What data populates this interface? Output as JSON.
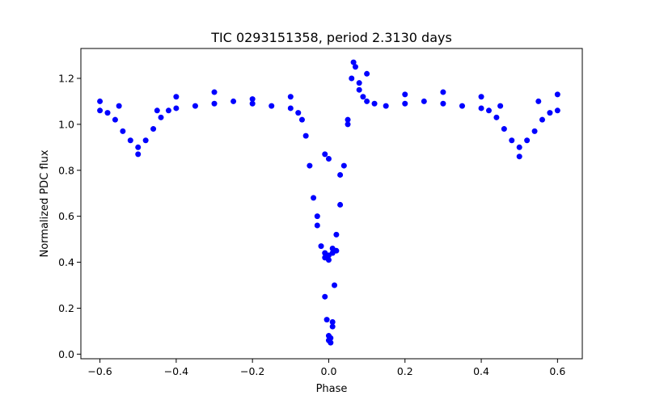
{
  "chart_data": {
    "type": "scatter",
    "title": "TIC 0293151358, period 2.3130 days",
    "xlabel": "Phase",
    "ylabel": "Normalized PDC flux",
    "xlim": [
      -0.65,
      0.665
    ],
    "ylim": [
      -0.02,
      1.33
    ],
    "xticks": [
      -0.6,
      -0.4,
      -0.2,
      0.0,
      0.2,
      0.4,
      0.6
    ],
    "xtick_labels": [
      "−0.6",
      "−0.4",
      "−0.2",
      "0.0",
      "0.2",
      "0.4",
      "0.6"
    ],
    "yticks": [
      0.0,
      0.2,
      0.4,
      0.6,
      0.8,
      1.0,
      1.2
    ],
    "ytick_labels": [
      "0.0",
      "0.2",
      "0.4",
      "0.6",
      "0.8",
      "1.0",
      "1.2"
    ],
    "grid": false,
    "series": [
      {
        "name": "Normalized PDC flux",
        "color": "#0000ff",
        "x": [
          -0.6,
          -0.58,
          -0.56,
          -0.54,
          -0.52,
          -0.5,
          -0.48,
          -0.46,
          -0.44,
          -0.42,
          -0.4,
          -0.35,
          -0.3,
          -0.25,
          -0.2,
          -0.15,
          -0.1,
          -0.08,
          -0.06,
          -0.05,
          -0.04,
          -0.03,
          -0.02,
          -0.01,
          0.0,
          0.01,
          0.02,
          0.03,
          0.04,
          0.05,
          0.06,
          0.065,
          0.07,
          0.08,
          0.09,
          0.1,
          0.12,
          0.15,
          0.2,
          0.25,
          0.3,
          0.35,
          0.4,
          0.42,
          0.44,
          0.46,
          0.48,
          0.5,
          0.52,
          0.54,
          0.56,
          0.58,
          0.6,
          -0.6,
          -0.55,
          -0.5,
          -0.45,
          -0.4,
          -0.3,
          -0.2,
          -0.1,
          -0.07,
          -0.03,
          -0.01,
          0.0,
          0.01,
          0.03,
          0.05,
          0.08,
          0.1,
          0.2,
          0.3,
          0.4,
          0.45,
          0.5,
          0.55,
          0.6,
          -0.01,
          -0.005,
          0.0,
          0.005,
          0.01,
          0.015,
          0.02,
          -0.01,
          0.0,
          0.01,
          0.0,
          0.005
        ],
        "y": [
          1.06,
          1.05,
          1.02,
          0.97,
          0.93,
          0.9,
          0.93,
          0.98,
          1.03,
          1.06,
          1.07,
          1.08,
          1.09,
          1.1,
          1.09,
          1.08,
          1.07,
          1.05,
          0.95,
          0.82,
          0.68,
          0.56,
          0.47,
          0.42,
          0.41,
          0.44,
          0.52,
          0.65,
          0.82,
          1.02,
          1.2,
          1.27,
          1.25,
          1.18,
          1.12,
          1.1,
          1.09,
          1.08,
          1.09,
          1.1,
          1.09,
          1.08,
          1.07,
          1.06,
          1.03,
          0.98,
          0.93,
          0.9,
          0.93,
          0.97,
          1.02,
          1.05,
          1.06,
          1.1,
          1.08,
          0.87,
          1.06,
          1.12,
          1.14,
          1.11,
          1.12,
          1.02,
          0.6,
          0.44,
          0.43,
          0.46,
          0.78,
          1.0,
          1.15,
          1.22,
          1.13,
          1.14,
          1.12,
          1.08,
          0.86,
          1.1,
          1.13,
          0.25,
          0.15,
          0.08,
          0.05,
          0.14,
          0.3,
          0.45,
          0.87,
          0.85,
          0.12,
          0.06,
          0.07
        ]
      }
    ]
  }
}
